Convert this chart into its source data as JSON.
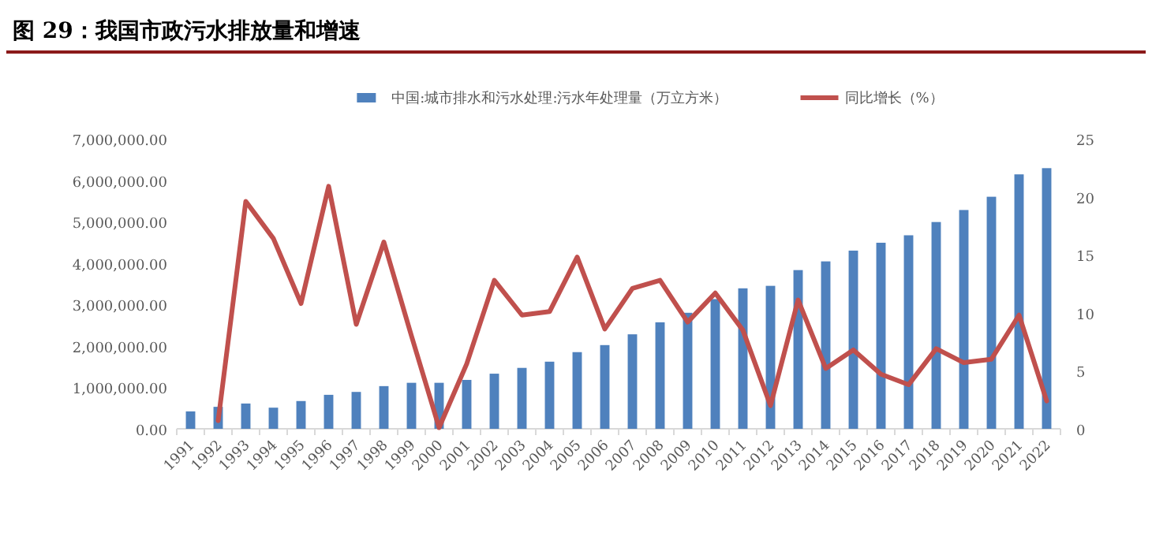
{
  "chart_data": {
    "type": "bar",
    "title": "图 29：我国市政污水排放量和增速",
    "categories": [
      "1991",
      "1992",
      "1993",
      "1994",
      "1995",
      "1996",
      "1997",
      "1998",
      "1999",
      "2000",
      "2001",
      "2002",
      "2003",
      "2004",
      "2005",
      "2006",
      "2007",
      "2008",
      "2009",
      "2010",
      "2011",
      "2012",
      "2013",
      "2014",
      "2015",
      "2016",
      "2017",
      "2018",
      "2019",
      "2020",
      "2021",
      "2022"
    ],
    "series": [
      {
        "name": "中国:城市排水和污水处理:污水年处理量（万立方米）",
        "color": "#4f81bd",
        "values": [
          420000,
          530000,
          610000,
          510000,
          670000,
          820000,
          890000,
          1030000,
          1110000,
          1110000,
          1180000,
          1330000,
          1470000,
          1620000,
          1850000,
          2020000,
          2280000,
          2570000,
          2800000,
          3130000,
          3390000,
          3450000,
          3830000,
          4040000,
          4300000,
          4490000,
          4670000,
          4990000,
          5280000,
          5600000,
          6140000,
          6290000
        ]
      },
      {
        "name": "同比增长（%）",
        "type": "line",
        "axis": "y2",
        "color": "#c0504d",
        "values": [
          null,
          0.7,
          19.6,
          16.4,
          10.8,
          20.9,
          9.0,
          16.1,
          8.0,
          0.1,
          5.6,
          12.8,
          9.8,
          10.1,
          14.8,
          8.6,
          12.1,
          12.8,
          9.2,
          11.7,
          8.5,
          2.0,
          11.1,
          5.2,
          6.8,
          4.7,
          3.8,
          6.9,
          5.7,
          6.0,
          9.8,
          2.4
        ]
      }
    ],
    "ylim": [
      0,
      7000000
    ],
    "yticks": [
      {
        "value": 0,
        "label": "0.00"
      },
      {
        "value": 1000000,
        "label": "1,000,000.00"
      },
      {
        "value": 2000000,
        "label": "2,000,000.00"
      },
      {
        "value": 3000000,
        "label": "3,000,000.00"
      },
      {
        "value": 4000000,
        "label": "4,000,000.00"
      },
      {
        "value": 5000000,
        "label": "5,000,000.00"
      },
      {
        "value": 6000000,
        "label": "6,000,000.00"
      },
      {
        "value": 7000000,
        "label": "7,000,000.00"
      }
    ],
    "y2lim": [
      0,
      25
    ],
    "y2ticks": [
      0,
      5,
      10,
      15,
      20,
      25
    ],
    "legend": "top"
  }
}
